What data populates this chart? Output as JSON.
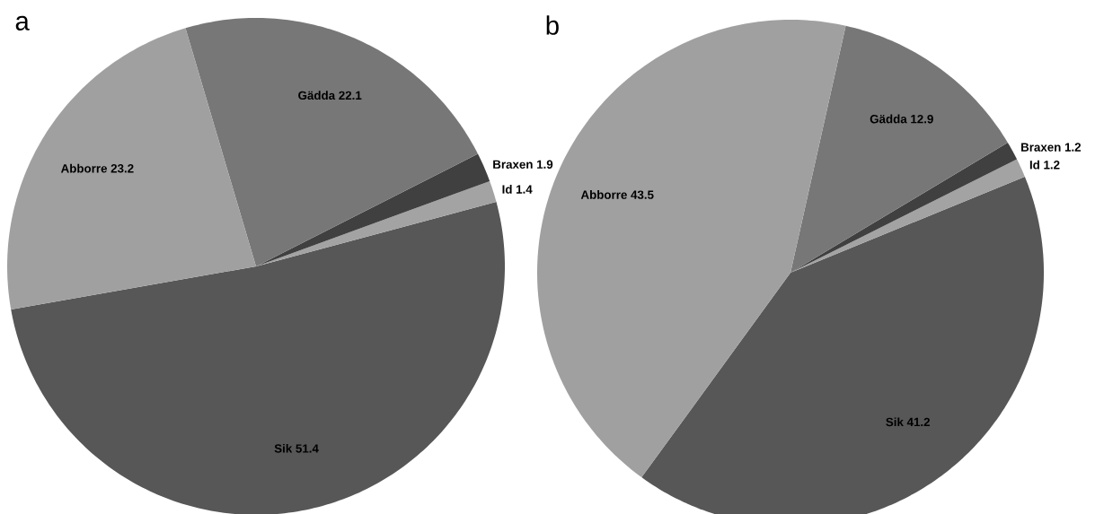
{
  "chart_data": [
    {
      "type": "pie",
      "title": "a",
      "categories": [
        "Sik",
        "Id",
        "Braxen",
        "Gädda",
        "Abborre"
      ],
      "values": [
        51.4,
        1.4,
        1.9,
        22.1,
        23.2
      ],
      "colors": [
        "#575757",
        "#a3a3a3",
        "#404040",
        "#777777",
        "#a0a0a0"
      ],
      "data_labels": true
    },
    {
      "type": "pie",
      "title": "b",
      "categories": [
        "Sik",
        "Id",
        "Braxen",
        "Gädda",
        "Abborre"
      ],
      "values": [
        41.2,
        1.2,
        1.2,
        12.9,
        43.5
      ],
      "colors": [
        "#575757",
        "#a3a3a3",
        "#404040",
        "#777777",
        "#a0a0a0"
      ],
      "data_labels": true
    }
  ]
}
